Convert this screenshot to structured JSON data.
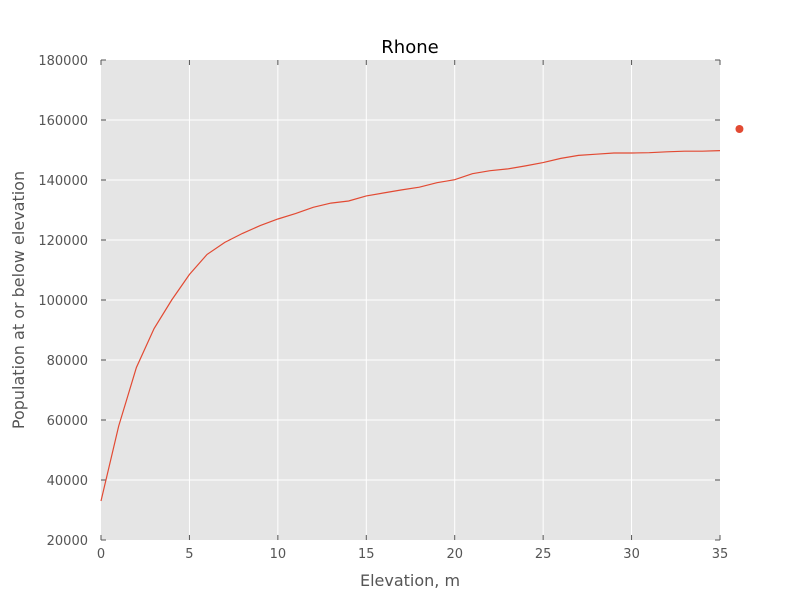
{
  "chart_data": {
    "type": "line",
    "title": "Rhone",
    "xlabel": "Elevation, m",
    "ylabel": "Population at or below elevation",
    "xlim": [
      0,
      35
    ],
    "ylim": [
      20000,
      180000
    ],
    "x_ticks": [
      0,
      5,
      10,
      15,
      20,
      25,
      30,
      35
    ],
    "y_ticks": [
      20000,
      40000,
      60000,
      80000,
      100000,
      120000,
      140000,
      160000,
      180000
    ],
    "grid": true,
    "background_color": "#e5e5e5",
    "series": [
      {
        "color": "#e24a33",
        "x": [
          0,
          1,
          2,
          3,
          4,
          5,
          6,
          7,
          8,
          9,
          10,
          11,
          12,
          13,
          14,
          15,
          16,
          17,
          18,
          19,
          20,
          21,
          22,
          23,
          24,
          25,
          26,
          27,
          28,
          29,
          30,
          31,
          32,
          33,
          34,
          35
        ],
        "y": [
          33000,
          58000,
          77500,
          90500,
          100000,
          108500,
          115200,
          119200,
          122200,
          124800,
          127000,
          128800,
          130900,
          132300,
          133000,
          134700,
          135700,
          136700,
          137600,
          139100,
          140100,
          142100,
          143100,
          143700,
          144700,
          145800,
          147200,
          148200,
          148600,
          149000,
          149000,
          149100,
          149400,
          149600,
          149600,
          149800
        ]
      }
    ],
    "extra_point": {
      "x": 36.1,
      "y": 157000,
      "color": "#e24a33"
    }
  }
}
